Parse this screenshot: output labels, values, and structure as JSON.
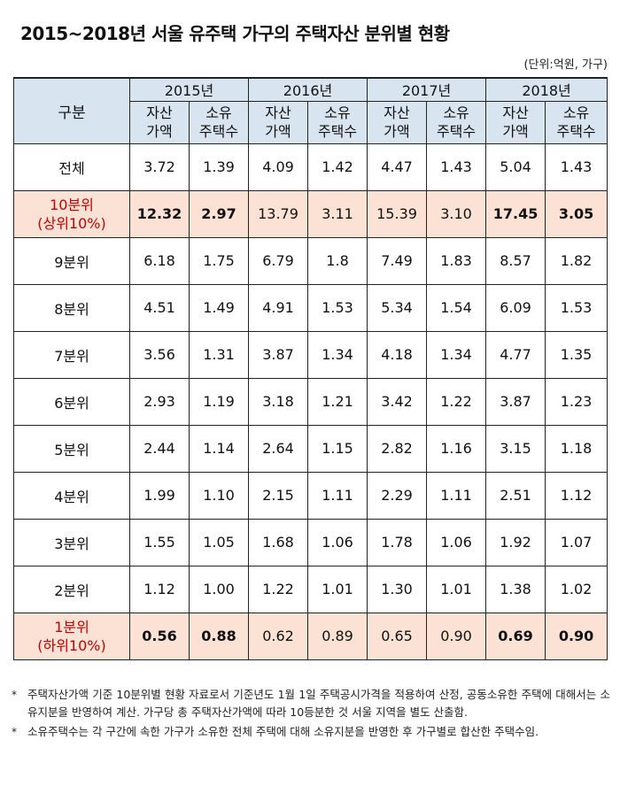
{
  "title": "2015~2018년 서울 유주택 가구의 주택자산 분위별 현황",
  "unit": "(단위:억원, 가구)",
  "table": {
    "corner": "구분",
    "years": [
      "2015년",
      "2016년",
      "2017년",
      "2018년"
    ],
    "sub_asset_1": "자산",
    "sub_asset_2": "가액",
    "sub_count_1": "소유",
    "sub_count_2": "주택수",
    "rows": [
      {
        "label": "전체",
        "highlight": false,
        "values": [
          "3.72",
          "1.39",
          "4.09",
          "1.42",
          "4.47",
          "1.43",
          "5.04",
          "1.43"
        ]
      },
      {
        "label": "10분위",
        "label2": "(상위10%)",
        "highlight": true,
        "values": [
          "12.32",
          "2.97",
          "13.79",
          "3.11",
          "15.39",
          "3.10",
          "17.45",
          "3.05"
        ]
      },
      {
        "label": "9분위",
        "highlight": false,
        "values": [
          "6.18",
          "1.75",
          "6.79",
          "1.8",
          "7.49",
          "1.83",
          "8.57",
          "1.82"
        ]
      },
      {
        "label": "8분위",
        "highlight": false,
        "values": [
          "4.51",
          "1.49",
          "4.91",
          "1.53",
          "5.34",
          "1.54",
          "6.09",
          "1.53"
        ]
      },
      {
        "label": "7분위",
        "highlight": false,
        "values": [
          "3.56",
          "1.31",
          "3.87",
          "1.34",
          "4.18",
          "1.34",
          "4.77",
          "1.35"
        ]
      },
      {
        "label": "6분위",
        "highlight": false,
        "values": [
          "2.93",
          "1.19",
          "3.18",
          "1.21",
          "3.42",
          "1.22",
          "3.87",
          "1.23"
        ]
      },
      {
        "label": "5분위",
        "highlight": false,
        "values": [
          "2.44",
          "1.14",
          "2.64",
          "1.15",
          "2.82",
          "1.16",
          "3.15",
          "1.18"
        ]
      },
      {
        "label": "4분위",
        "highlight": false,
        "values": [
          "1.99",
          "1.10",
          "2.15",
          "1.11",
          "2.29",
          "1.11",
          "2.51",
          "1.12"
        ]
      },
      {
        "label": "3분위",
        "highlight": false,
        "values": [
          "1.55",
          "1.05",
          "1.68",
          "1.06",
          "1.78",
          "1.06",
          "1.92",
          "1.07"
        ]
      },
      {
        "label": "2분위",
        "highlight": false,
        "values": [
          "1.12",
          "1.00",
          "1.22",
          "1.01",
          "1.30",
          "1.01",
          "1.38",
          "1.02"
        ]
      },
      {
        "label": "1분위",
        "label2": "(하위10%)",
        "highlight": true,
        "values": [
          "0.56",
          "0.88",
          "0.62",
          "0.89",
          "0.65",
          "0.90",
          "0.69",
          "0.90"
        ]
      }
    ]
  },
  "highlight_bold_years": [
    0,
    3
  ],
  "colors": {
    "header_bg": "#d8e4f0",
    "highlight_bg": "#fbe2d5",
    "highlight_text": "#c00000"
  },
  "notes": [
    {
      "mark": "*",
      "text": "주택자산가액 기준 10분위별 현황 자료로서 기준년도 1월 1일 주택공시가격을 적용하여 산정, 공동소유한 주택에 대해서는 소유지분을 반영하여 계산. 가구당 총 주택자산가액에 따라 10등분한 것 서울 지역을 별도 산출함."
    },
    {
      "mark": "*",
      "text": "소유주택수는 각 구간에 속한 가구가 소유한 전체 주택에 대해 소유지분을 반영한 후 가구별로 합산한 주택수임."
    }
  ]
}
